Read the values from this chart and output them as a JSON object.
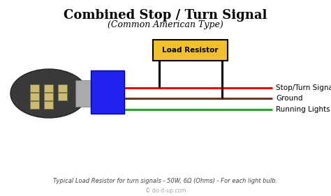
{
  "title": "Combined Stop / Turn Signal",
  "subtitle": "(Common American Type)",
  "footnote": "Typical Load Resistor for turn signals - 50W, 6Ω (Ohms) - For each light bulb.",
  "copyright": "© do-it-up.com",
  "bg_color": "#ffffff",
  "title_color": "#000000",
  "subtitle_color": "#000000",
  "footnote_color": "#444444",
  "wire_red_color": "#ee0000",
  "wire_brown_color": "#6b3a1f",
  "wire_green_color": "#22aa22",
  "connector_blue_color": "#2222ee",
  "resistor_box_fill": "#f0c030",
  "resistor_box_edge": "#000000",
  "black": "#000000",
  "label_red": "Stop/Turn Signal",
  "label_brown": "Ground",
  "label_green": "Running Lights",
  "label_resistor": "Load Resistor",
  "bulb_body_color": "#555555",
  "bulb_edge_color": "#333333",
  "bulb_led_color": "#ddcc88",
  "bulb_metal_color": "#999999"
}
